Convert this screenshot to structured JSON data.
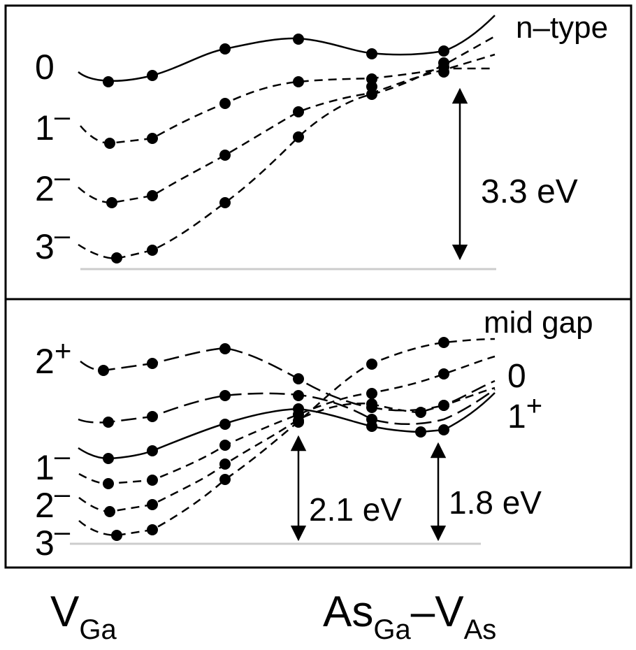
{
  "panels": {
    "top": {
      "condition_label": "n–type",
      "charge_labels": [
        {
          "main": "0",
          "sup": ""
        },
        {
          "main": "1",
          "sup": "–"
        },
        {
          "main": "2",
          "sup": "–"
        },
        {
          "main": "3",
          "sup": "–"
        }
      ],
      "energy_label": "3.3 eV"
    },
    "bottom": {
      "condition_label": "mid gap",
      "left_charge_labels": [
        {
          "main": "2",
          "sup": "+"
        },
        {
          "main": "1",
          "sup": "–"
        },
        {
          "main": "2",
          "sup": "–"
        },
        {
          "main": "3",
          "sup": "–"
        }
      ],
      "right_charge_labels": [
        {
          "main": "0",
          "sup": ""
        },
        {
          "main": "1",
          "sup": "+"
        }
      ],
      "energy_labels": [
        "2.1 eV",
        "1.8 eV"
      ]
    }
  },
  "axis_endpoints": {
    "left": {
      "main": "V",
      "sub": "Ga"
    },
    "right": {
      "main": "As",
      "sub1": "Ga",
      "dash": "–",
      "main2": "V",
      "sub2": "As"
    }
  },
  "colors": {
    "line": "#000000",
    "baseline": "#cccccc",
    "background": "#ffffff"
  }
}
